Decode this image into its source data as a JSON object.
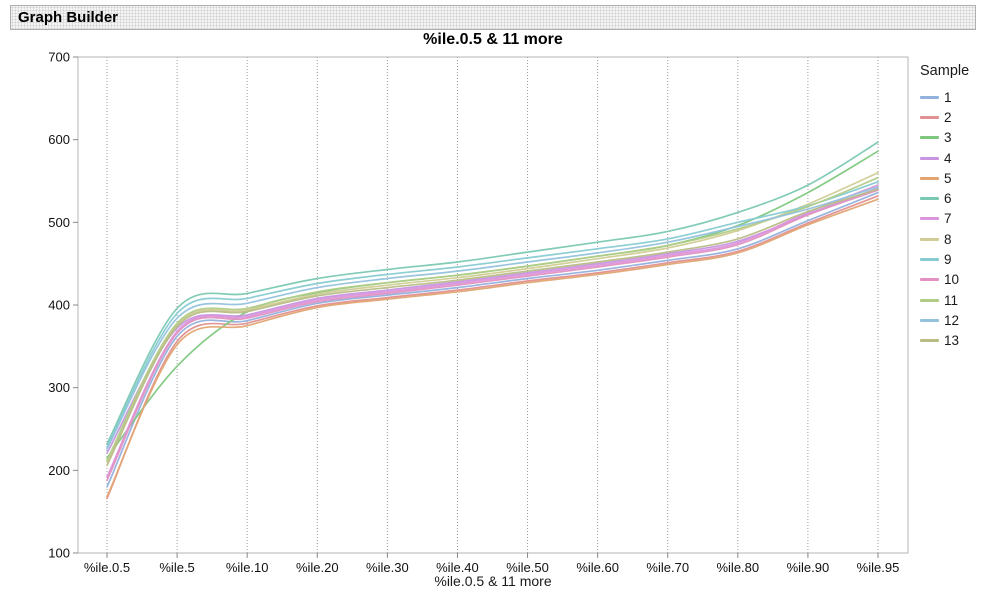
{
  "window": {
    "title": "Graph Builder"
  },
  "chart": {
    "title": "%ile.0.5 & 11 more",
    "x_axis_label": "%ile.0.5 & 11 more",
    "legend_title": "Sample"
  },
  "chart_data": {
    "type": "line",
    "title": "%ile.0.5 & 11 more",
    "xlabel": "%ile.0.5 & 11 more",
    "ylabel": "",
    "ylim": [
      100,
      700
    ],
    "y_ticks": [
      100,
      200,
      300,
      400,
      500,
      600,
      700
    ],
    "grid": "vertical-dotted",
    "legend_position": "right",
    "legend_title": "Sample",
    "frame_color": "#b6b6b6",
    "gridline_color": "#9a9a9a",
    "tick_color": "#888888",
    "categories": [
      "%ile.0.5",
      "%ile.5",
      "%ile.10",
      "%ile.20",
      "%ile.30",
      "%ile.40",
      "%ile.50",
      "%ile.60",
      "%ile.70",
      "%ile.80",
      "%ile.90",
      "%ile.95"
    ],
    "series": [
      {
        "name": "1",
        "color": "#93b1dd",
        "values": [
          180,
          362,
          381,
          402,
          412,
          421,
          432,
          442,
          454,
          468,
          502,
          536
        ]
      },
      {
        "name": "2",
        "color": "#e29090",
        "values": [
          166,
          356,
          378,
          399,
          409,
          418,
          429,
          439,
          451,
          465,
          499,
          532
        ]
      },
      {
        "name": "3",
        "color": "#7ec87e",
        "values": [
          215,
          326,
          392,
          415,
          427,
          436,
          447,
          459,
          472,
          496,
          536,
          586
        ]
      },
      {
        "name": "4",
        "color": "#c795e0",
        "values": [
          221,
          372,
          388,
          408,
          418,
          428,
          439,
          450,
          462,
          477,
          510,
          541
        ]
      },
      {
        "name": "5",
        "color": "#e2a572",
        "values": [
          168,
          352,
          375,
          397,
          407,
          416,
          427,
          437,
          449,
          463,
          497,
          528
        ]
      },
      {
        "name": "6",
        "color": "#7ac8b3",
        "values": [
          232,
          396,
          414,
          432,
          443,
          452,
          464,
          476,
          489,
          512,
          545,
          597
        ]
      },
      {
        "name": "7",
        "color": "#dc95dc",
        "values": [
          192,
          368,
          386,
          406,
          416,
          426,
          437,
          448,
          460,
          475,
          512,
          545
        ]
      },
      {
        "name": "8",
        "color": "#d1cc93",
        "values": [
          210,
          376,
          394,
          413,
          424,
          433,
          444,
          456,
          469,
          490,
          522,
          560
        ]
      },
      {
        "name": "9",
        "color": "#86cbd1",
        "values": [
          228,
          390,
          408,
          426,
          437,
          446,
          457,
          468,
          480,
          500,
          520,
          549
        ]
      },
      {
        "name": "10",
        "color": "#e291c2",
        "values": [
          188,
          366,
          384,
          404,
          414,
          424,
          435,
          446,
          458,
          473,
          509,
          539
        ]
      },
      {
        "name": "11",
        "color": "#b2cc87",
        "values": [
          212,
          378,
          396,
          416,
          427,
          436,
          447,
          459,
          472,
          492,
          519,
          554
        ]
      },
      {
        "name": "12",
        "color": "#94c2dc",
        "values": [
          226,
          384,
          402,
          421,
          432,
          441,
          452,
          463,
          476,
          495,
          516,
          543
        ]
      },
      {
        "name": "13",
        "color": "#b8bd86",
        "values": [
          206,
          374,
          392,
          411,
          421,
          430,
          441,
          452,
          464,
          480,
          513,
          540
        ]
      }
    ]
  }
}
